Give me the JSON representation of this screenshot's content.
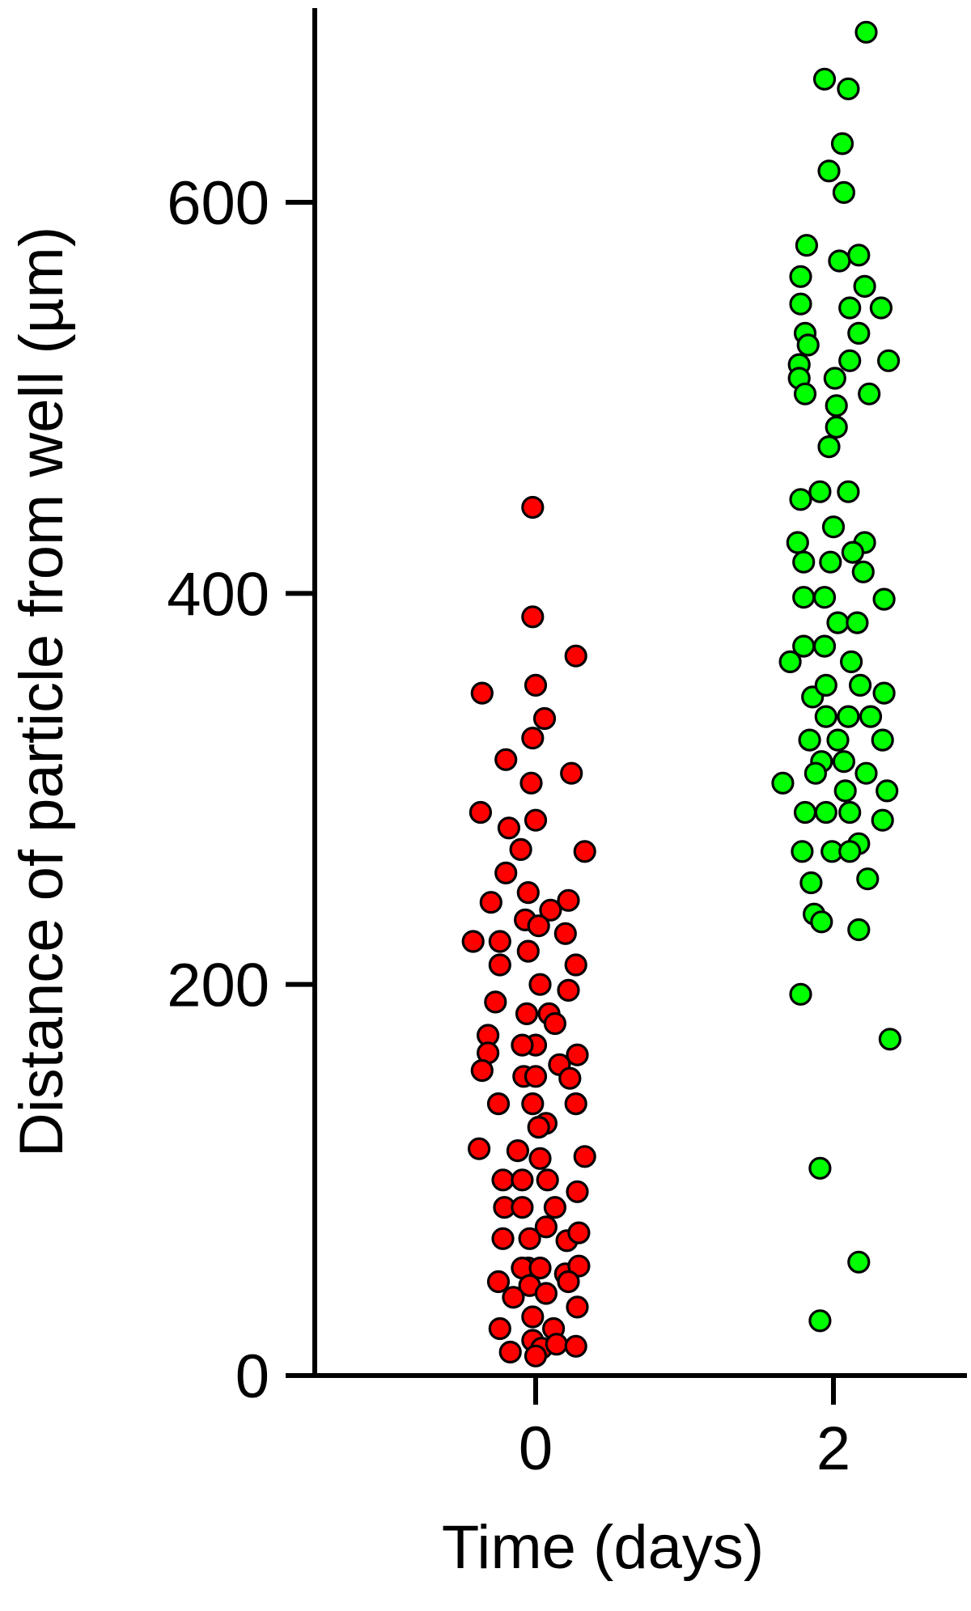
{
  "chart_data": {
    "type": "scatter",
    "title": "",
    "xlabel": "Time (days)",
    "ylabel": "Distance of particle from well (µm)",
    "ylim": [
      0,
      700
    ],
    "yticks": [
      0,
      200,
      400,
      600
    ],
    "grid": false,
    "legend": "none",
    "categories": [
      "0",
      "2"
    ],
    "series": [
      {
        "category": "0",
        "color": "#ff0000",
        "points": [
          [
            -0.02,
            444
          ],
          [
            -0.02,
            388
          ],
          [
            0.27,
            368
          ],
          [
            -0.36,
            349
          ],
          [
            0.0,
            353
          ],
          [
            0.06,
            336
          ],
          [
            -0.02,
            326
          ],
          [
            -0.2,
            315
          ],
          [
            0.24,
            308
          ],
          [
            -0.03,
            303
          ],
          [
            -0.37,
            288
          ],
          [
            0.0,
            284
          ],
          [
            -0.18,
            280
          ],
          [
            -0.1,
            269
          ],
          [
            0.33,
            268
          ],
          [
            -0.2,
            257
          ],
          [
            -0.05,
            247
          ],
          [
            0.22,
            243
          ],
          [
            -0.3,
            242
          ],
          [
            0.1,
            238
          ],
          [
            -0.07,
            233
          ],
          [
            0.02,
            230
          ],
          [
            0.2,
            226
          ],
          [
            -0.42,
            222
          ],
          [
            -0.24,
            222
          ],
          [
            -0.05,
            217
          ],
          [
            0.27,
            210
          ],
          [
            -0.24,
            210
          ],
          [
            0.03,
            200
          ],
          [
            0.22,
            197
          ],
          [
            -0.27,
            191
          ],
          [
            0.09,
            185
          ],
          [
            -0.06,
            185
          ],
          [
            0.13,
            180
          ],
          [
            -0.32,
            174
          ],
          [
            0.0,
            169
          ],
          [
            -0.09,
            169
          ],
          [
            -0.32,
            165
          ],
          [
            0.28,
            164
          ],
          [
            0.16,
            159
          ],
          [
            -0.36,
            156
          ],
          [
            -0.08,
            153
          ],
          [
            0.0,
            153
          ],
          [
            0.23,
            152
          ],
          [
            -0.25,
            139
          ],
          [
            -0.02,
            139
          ],
          [
            0.27,
            139
          ],
          [
            0.07,
            129
          ],
          [
            0.02,
            127
          ],
          [
            -0.38,
            116
          ],
          [
            -0.12,
            115
          ],
          [
            0.33,
            112
          ],
          [
            0.03,
            111
          ],
          [
            -0.22,
            100
          ],
          [
            -0.09,
            100
          ],
          [
            0.08,
            100
          ],
          [
            0.28,
            94
          ],
          [
            -0.21,
            86
          ],
          [
            -0.09,
            86
          ],
          [
            0.13,
            86
          ],
          [
            0.07,
            76
          ],
          [
            -0.22,
            70
          ],
          [
            -0.04,
            70
          ],
          [
            0.21,
            69
          ],
          [
            0.29,
            73
          ],
          [
            -0.05,
            55
          ],
          [
            -0.25,
            48
          ],
          [
            -0.09,
            55
          ],
          [
            0.03,
            55
          ],
          [
            0.2,
            52
          ],
          [
            0.29,
            56
          ],
          [
            -0.04,
            46
          ],
          [
            -0.15,
            40
          ],
          [
            0.07,
            42
          ],
          [
            0.22,
            48
          ],
          [
            0.28,
            35
          ],
          [
            -0.24,
            24
          ],
          [
            -0.02,
            30
          ],
          [
            0.12,
            24
          ],
          [
            -0.02,
            18
          ],
          [
            0.04,
            14
          ],
          [
            0.14,
            16
          ],
          [
            0.27,
            15
          ],
          [
            -0.17,
            12
          ],
          [
            0.0,
            10
          ]
        ]
      },
      {
        "category": "2",
        "color": "#00ff00",
        "points": [
          [
            2.22,
            687
          ],
          [
            1.94,
            663
          ],
          [
            2.1,
            658
          ],
          [
            2.06,
            630
          ],
          [
            1.97,
            616
          ],
          [
            2.07,
            605
          ],
          [
            1.82,
            578
          ],
          [
            2.04,
            570
          ],
          [
            2.17,
            573
          ],
          [
            1.78,
            562
          ],
          [
            2.21,
            557
          ],
          [
            1.78,
            548
          ],
          [
            2.11,
            546
          ],
          [
            2.32,
            546
          ],
          [
            1.81,
            533
          ],
          [
            2.17,
            533
          ],
          [
            1.83,
            527
          ],
          [
            1.77,
            517
          ],
          [
            2.11,
            519
          ],
          [
            2.37,
            519
          ],
          [
            1.77,
            510
          ],
          [
            2.01,
            510
          ],
          [
            1.81,
            502
          ],
          [
            2.24,
            502
          ],
          [
            2.02,
            496
          ],
          [
            2.02,
            485
          ],
          [
            1.97,
            475
          ],
          [
            1.78,
            448
          ],
          [
            1.91,
            452
          ],
          [
            2.1,
            452
          ],
          [
            2.0,
            434
          ],
          [
            2.21,
            426
          ],
          [
            1.76,
            426
          ],
          [
            2.13,
            421
          ],
          [
            1.8,
            416
          ],
          [
            1.98,
            416
          ],
          [
            2.2,
            411
          ],
          [
            1.8,
            398
          ],
          [
            1.94,
            398
          ],
          [
            2.03,
            385
          ],
          [
            2.16,
            385
          ],
          [
            2.34,
            397
          ],
          [
            1.8,
            373
          ],
          [
            1.94,
            373
          ],
          [
            1.71,
            365
          ],
          [
            2.12,
            365
          ],
          [
            1.86,
            347
          ],
          [
            1.95,
            353
          ],
          [
            2.18,
            353
          ],
          [
            2.34,
            349
          ],
          [
            1.95,
            337
          ],
          [
            2.1,
            337
          ],
          [
            2.25,
            337
          ],
          [
            1.84,
            325
          ],
          [
            2.03,
            325
          ],
          [
            2.33,
            325
          ],
          [
            2.07,
            314
          ],
          [
            1.92,
            314
          ],
          [
            1.66,
            303
          ],
          [
            1.88,
            308
          ],
          [
            2.22,
            308
          ],
          [
            2.08,
            299
          ],
          [
            2.36,
            299
          ],
          [
            1.81,
            288
          ],
          [
            1.95,
            288
          ],
          [
            2.11,
            288
          ],
          [
            2.33,
            284
          ],
          [
            2.17,
            272
          ],
          [
            1.79,
            268
          ],
          [
            1.99,
            268
          ],
          [
            2.11,
            268
          ],
          [
            1.85,
            252
          ],
          [
            2.23,
            254
          ],
          [
            1.87,
            236
          ],
          [
            1.92,
            232
          ],
          [
            2.17,
            228
          ],
          [
            1.78,
            195
          ],
          [
            2.38,
            172
          ],
          [
            1.91,
            106
          ],
          [
            2.17,
            58
          ],
          [
            1.91,
            28
          ]
        ]
      }
    ]
  }
}
